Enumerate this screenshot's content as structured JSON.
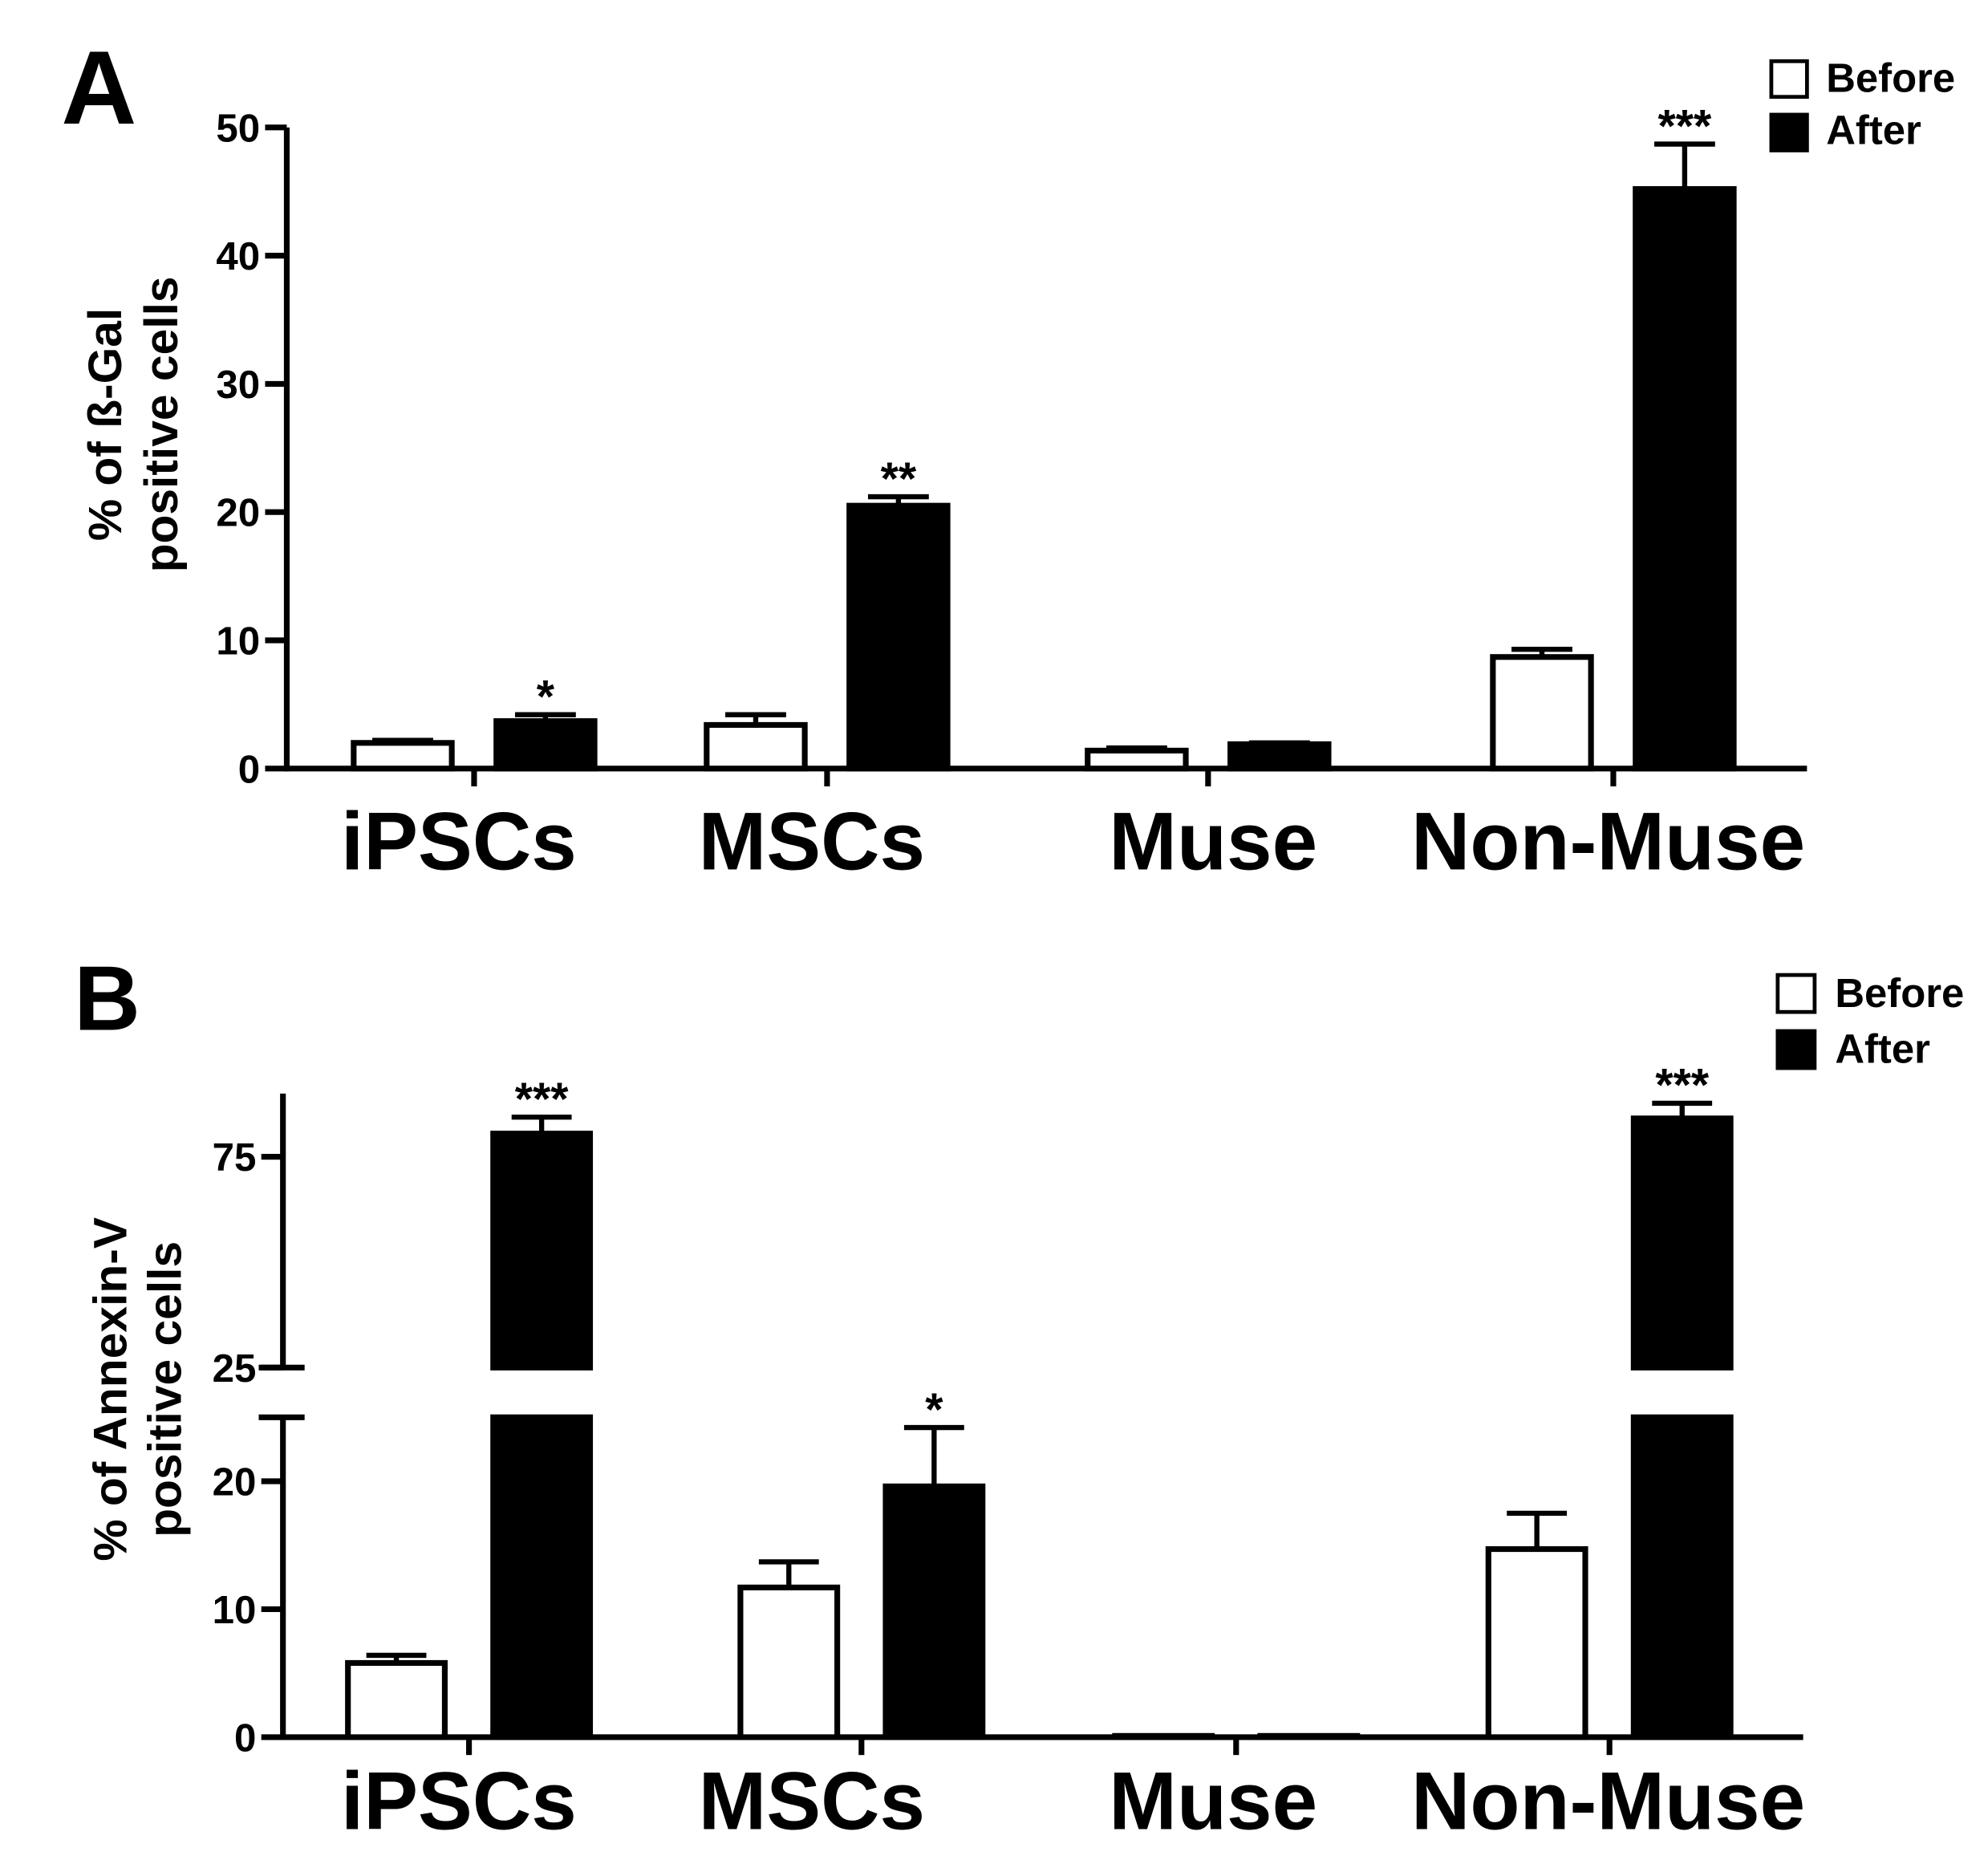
{
  "colors": {
    "background": "#ffffff",
    "ink": "#000000",
    "before_fill": "#ffffff",
    "after_fill": "#000000"
  },
  "chart_data": [
    {
      "panel": "A",
      "type": "bar",
      "title": "",
      "ylabel": [
        "% of ß-Gal",
        "positive cells"
      ],
      "categories": [
        "iPSCs",
        "MSCs",
        "Muse",
        "Non-Muse"
      ],
      "ylim": [
        0,
        50
      ],
      "y_segments": [
        {
          "range": [
            0,
            50
          ],
          "ticks": [
            0,
            10,
            20,
            30,
            40,
            50
          ]
        }
      ],
      "grid": false,
      "legend": {
        "placement": "top-right"
      },
      "series": [
        {
          "name": "Before",
          "values": [
            2.0,
            3.4,
            1.4,
            8.7
          ],
          "error": [
            0.2,
            0.8,
            0.2,
            0.6
          ],
          "significance": [
            "",
            "",
            "",
            ""
          ]
        },
        {
          "name": "After",
          "values": [
            3.7,
            20.5,
            1.9,
            45.2
          ],
          "error": [
            0.5,
            0.7,
            0.1,
            3.5
          ],
          "significance": [
            "*",
            "**",
            "",
            "***"
          ]
        }
      ]
    },
    {
      "panel": "B",
      "type": "bar",
      "title": "",
      "ylabel": [
        "% of Annexin-V",
        "positive cells"
      ],
      "categories": [
        "iPSCs",
        "MSCs",
        "Muse",
        "Non-Muse"
      ],
      "ylim": [
        0,
        90
      ],
      "y_segments": [
        {
          "range": [
            0,
            25
          ],
          "ticks": [
            0,
            10,
            20
          ]
        },
        {
          "range": [
            25,
            90
          ],
          "ticks": [
            25,
            75
          ]
        }
      ],
      "grid": false,
      "legend": {
        "placement": "top-right"
      },
      "series": [
        {
          "name": "Before",
          "values": [
            5.8,
            11.7,
            0.1,
            14.7
          ],
          "error": [
            0.6,
            2.0,
            0.0,
            2.8
          ],
          "significance": [
            "",
            "",
            "",
            ""
          ]
        },
        {
          "name": "After",
          "values": [
            80.5,
            19.6,
            0.1,
            84.1
          ],
          "error": [
            3.9,
            4.6,
            0.0,
            3.6
          ],
          "significance": [
            "***",
            "*",
            "",
            "***"
          ]
        }
      ]
    }
  ]
}
